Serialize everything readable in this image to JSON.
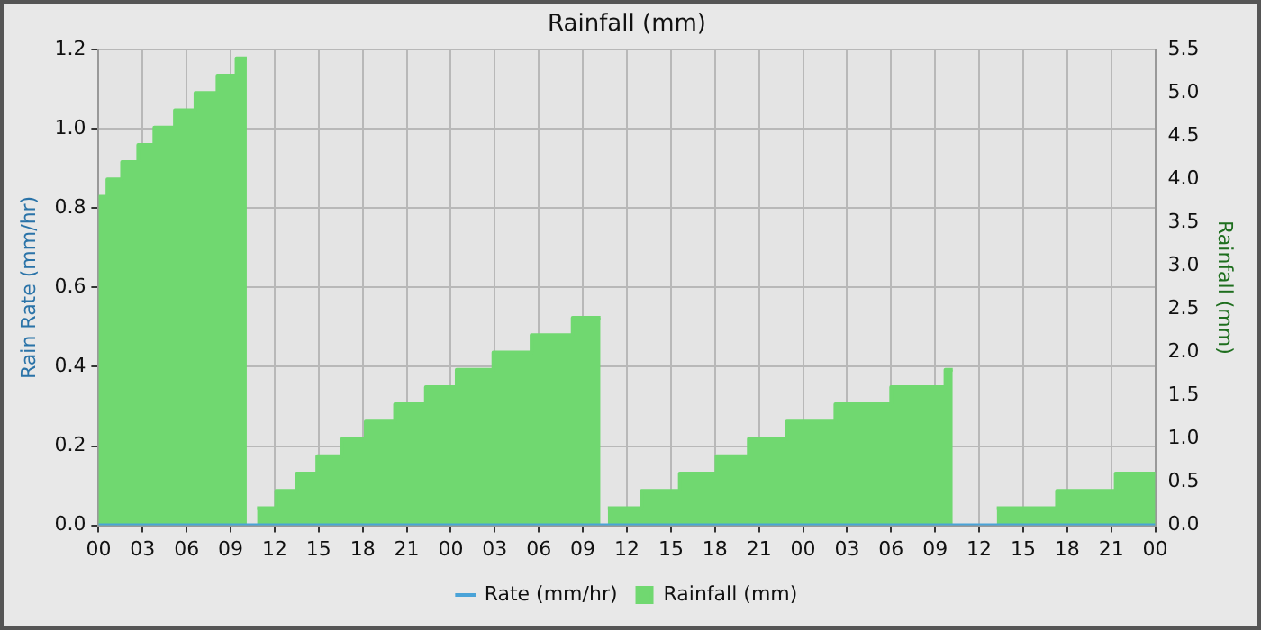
{
  "chart_data": {
    "type": "area",
    "title": "Rainfall (mm)",
    "ylabel": "Rain Rate (mm/hr)",
    "y2label": "Rainfall (mm)",
    "xlim": [
      0,
      72
    ],
    "xticks": [
      {
        "value": 0,
        "label": "00"
      },
      {
        "value": 3,
        "label": "03"
      },
      {
        "value": 6,
        "label": "06"
      },
      {
        "value": 9,
        "label": "09"
      },
      {
        "value": 12,
        "label": "12"
      },
      {
        "value": 15,
        "label": "15"
      },
      {
        "value": 18,
        "label": "18"
      },
      {
        "value": 21,
        "label": "21"
      },
      {
        "value": 24,
        "label": "00"
      },
      {
        "value": 27,
        "label": "03"
      },
      {
        "value": 30,
        "label": "06"
      },
      {
        "value": 33,
        "label": "09"
      },
      {
        "value": 36,
        "label": "12"
      },
      {
        "value": 39,
        "label": "15"
      },
      {
        "value": 42,
        "label": "18"
      },
      {
        "value": 45,
        "label": "21"
      },
      {
        "value": 48,
        "label": "00"
      },
      {
        "value": 51,
        "label": "03"
      },
      {
        "value": 54,
        "label": "06"
      },
      {
        "value": 57,
        "label": "09"
      },
      {
        "value": 60,
        "label": "12"
      },
      {
        "value": 63,
        "label": "15"
      },
      {
        "value": 66,
        "label": "18"
      },
      {
        "value": 69,
        "label": "21"
      },
      {
        "value": 72,
        "label": "00"
      }
    ],
    "ylim": [
      0,
      1.2
    ],
    "yticks": [
      {
        "value": 0,
        "label": "0.0"
      },
      0.2,
      0.4,
      0.6,
      0.8,
      {
        "value": 1,
        "label": "1.0"
      },
      1.2
    ],
    "y2lim": [
      0,
      5.5
    ],
    "y2ticks": [
      {
        "value": 0,
        "label": "0.0"
      },
      0.5,
      {
        "value": 1,
        "label": "1.0"
      },
      1.5,
      {
        "value": 2,
        "label": "2.0"
      },
      2.5,
      {
        "value": 3,
        "label": "3.0"
      },
      3.5,
      {
        "value": 4,
        "label": "4.0"
      },
      4.5,
      {
        "value": 5,
        "label": "5.0"
      },
      5.5
    ],
    "grid": true,
    "legend": "bottom",
    "series": [
      {
        "name": "Rate (mm/hr)",
        "type": "line",
        "color": "#4aa3d8",
        "x": [
          0,
          72
        ],
        "values": [
          0,
          0
        ]
      },
      {
        "name": "Rainfall (mm)",
        "axis": "y2",
        "color": "#70d870",
        "x": [
          0,
          0.6,
          0.6,
          1.6,
          1.6,
          2.7,
          2.7,
          3.8,
          3.8,
          5.2,
          5.2,
          6.6,
          6.6,
          8.1,
          8.1,
          9.4,
          9.4,
          10.1,
          10.4,
          10.8,
          12.1,
          12.1,
          13.5,
          13.5,
          14.9,
          14.9,
          16.6,
          16.6,
          18.2,
          18.2,
          20.2,
          20.2,
          22.3,
          22.3,
          24.4,
          24.4,
          26.9,
          26.9,
          29.5,
          29.5,
          32.3,
          32.3,
          34.2,
          34.4,
          34.7,
          37.0,
          37.0,
          39.6,
          39.6,
          42.1,
          42.1,
          44.3,
          44.3,
          46.9,
          46.9,
          50.2,
          50.2,
          54.0,
          54.0,
          57.7,
          57.7,
          58.2,
          59.5,
          61.2,
          65.3,
          65.3,
          69.3,
          69.3,
          72
        ],
        "values": [
          3.8,
          3.8,
          4.0,
          4.0,
          4.2,
          4.2,
          4.4,
          4.4,
          4.6,
          4.6,
          4.8,
          4.8,
          5.0,
          5.0,
          5.2,
          5.2,
          5.4,
          5.4,
          null,
          0.2,
          0.2,
          0.4,
          0.4,
          0.6,
          0.6,
          0.8,
          0.8,
          1.0,
          1.0,
          1.2,
          1.2,
          1.4,
          1.4,
          1.6,
          1.6,
          1.8,
          1.8,
          2.0,
          2.0,
          2.2,
          2.2,
          2.4,
          2.4,
          null,
          0.2,
          0.2,
          0.4,
          0.4,
          0.6,
          0.6,
          0.8,
          0.8,
          1.0,
          1.0,
          1.2,
          1.2,
          1.4,
          1.4,
          1.6,
          1.6,
          1.8,
          1.8,
          null,
          0.2,
          0.2,
          0.4,
          0.4,
          0.6,
          0.6
        ]
      }
    ]
  }
}
